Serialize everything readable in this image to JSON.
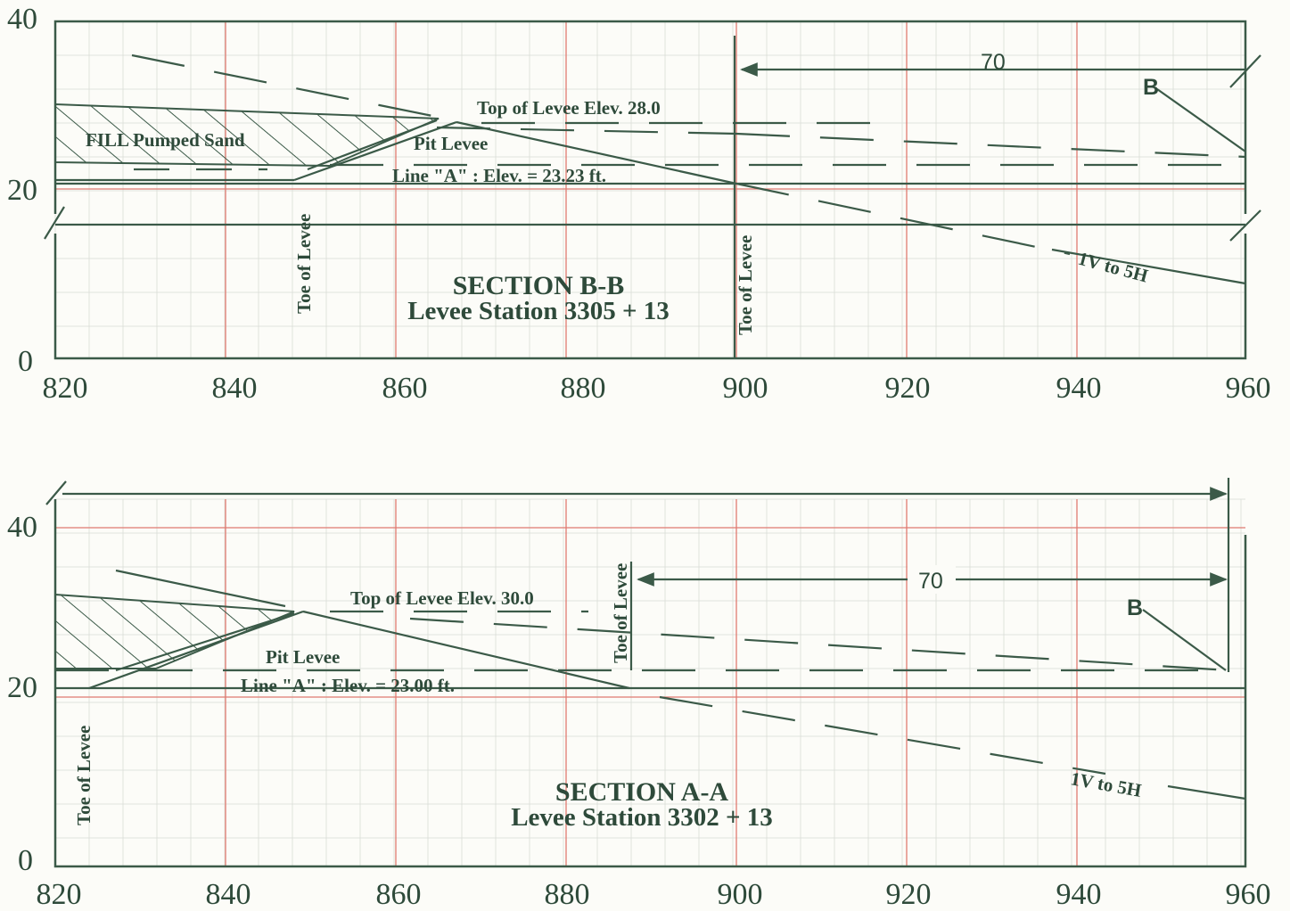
{
  "colors": {
    "ink": "#3b5a48",
    "grid": "#e07a70",
    "paper": "#fcfcf8"
  },
  "x_ticks": [
    "820",
    "840",
    "860",
    "880",
    "900",
    "920",
    "940",
    "960"
  ],
  "y_ticks": [
    "0",
    "20",
    "40"
  ],
  "section_bb": {
    "title": "SECTION B-B",
    "station": "Levee Station 3305 + 13",
    "top_label": "Top of Levee Elev. 28.0",
    "pit_label": "Pit Levee",
    "line_a_label": "Line \"A\" : Elev. = 23.23 ft.",
    "fill_label": "FILL Pumped Sand",
    "toe_label_1": "Toe of Levee",
    "toe_label_2": "Toe of Levee",
    "slope_label": "1V to 5H",
    "dim_value": "70",
    "b_label": "B"
  },
  "section_aa": {
    "title": "SECTION A-A",
    "station": "Levee Station 3302 + 13",
    "top_label": "Top of Levee Elev. 30.0",
    "pit_label": "Pit Levee",
    "line_a_label": "Line \"A\" : Elev. = 23.00 ft.",
    "toe_label_1": "Toe of Levee",
    "toe_label_2": "Toe of Levee",
    "slope_label": "1V to 5H",
    "dim_value": "70",
    "b_label": "B"
  }
}
